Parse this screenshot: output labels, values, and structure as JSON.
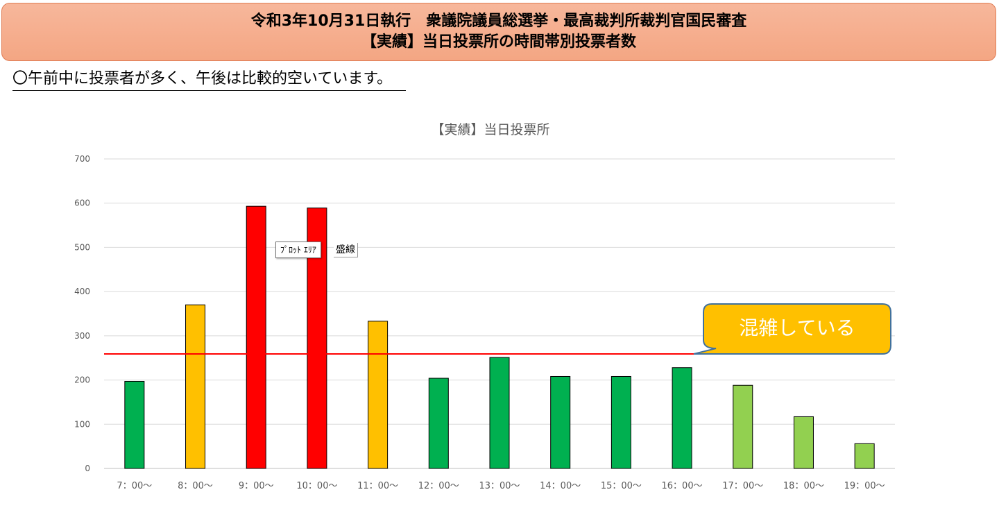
{
  "header": {
    "line1": "令和3年10月31日執行　衆議院議員総選挙・最高裁判所裁判官国民審査",
    "line2": "【実績】当日投票所の時間帯別投票者数"
  },
  "intro_text": "〇午前中に投票者が多く、午後は比較的空いています。",
  "tooltip": {
    "label": "ﾌﾟﾛｯﾄ ｴﾘｱ",
    "extra": "盛線"
  },
  "callout": {
    "text": "混雑している",
    "color": "#FFC000"
  },
  "colors": {
    "dark_green": "#00B050",
    "light_green": "#92D050",
    "yellow": "#FFC000",
    "red": "#FF0000",
    "threshold_line": "#FF0000"
  },
  "chart_data": {
    "type": "bar",
    "title": "【実績】当日投票所",
    "categories": [
      "7：00〜",
      "8：00〜",
      "9：00〜",
      "10：00〜",
      "11：00〜",
      "12：00〜",
      "13：00〜",
      "14：00〜",
      "15：00〜",
      "16：00〜",
      "17：00〜",
      "18：00〜",
      "19：00〜"
    ],
    "values": [
      197,
      370,
      593,
      589,
      333,
      204,
      251,
      208,
      208,
      228,
      188,
      117,
      56
    ],
    "bar_colors": [
      "dark_green",
      "yellow",
      "red",
      "red",
      "yellow",
      "dark_green",
      "dark_green",
      "dark_green",
      "dark_green",
      "dark_green",
      "light_green",
      "light_green",
      "light_green"
    ],
    "ylim": [
      0,
      700
    ],
    "yticks": [
      0,
      100,
      200,
      300,
      400,
      500,
      600,
      700
    ],
    "xlabel": "",
    "ylabel": "",
    "grid": true,
    "threshold": 259
  }
}
